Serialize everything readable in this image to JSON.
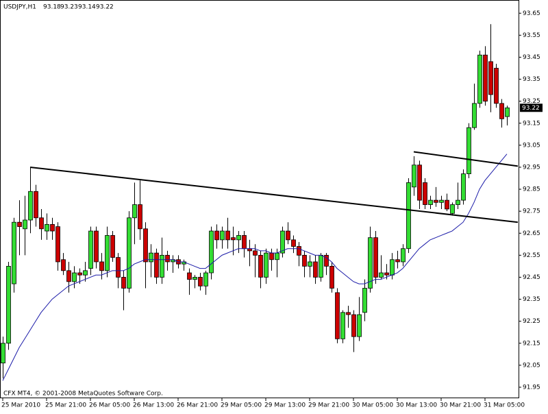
{
  "chart_data": {
    "type": "candlestick",
    "symbol": "USDJPY,H1",
    "copyright": "CFX MT4, © 2001-2008 MetaQuotes Software Corp.",
    "categories": [
      "25 Mar 2010",
      null,
      null,
      null,
      null,
      null,
      null,
      null,
      "25 Mar 21:00",
      null,
      null,
      null,
      null,
      null,
      null,
      null,
      "26 Mar 05:00",
      null,
      null,
      null,
      null,
      null,
      null,
      null,
      "26 Mar 13:00",
      null,
      null,
      null,
      null,
      null,
      null,
      null,
      "26 Mar 21:00",
      null,
      null,
      null,
      null,
      null,
      null,
      null,
      "29 Mar 05:00",
      null,
      null,
      null,
      null,
      null,
      null,
      null,
      "29 Mar 13:00",
      null,
      null,
      null,
      null,
      null,
      null,
      null,
      "29 Mar 21:00",
      null,
      null,
      null,
      null,
      null,
      null,
      null,
      "30 Mar 05:00",
      null,
      null,
      null,
      null,
      null,
      null,
      null,
      "30 Mar 13:00",
      null,
      null,
      null,
      null,
      null,
      null,
      null,
      "30 Mar 21:00",
      null,
      null,
      null,
      null,
      null,
      null,
      null,
      "31 Mar 05:00",
      null,
      null,
      null,
      null
    ],
    "open": [
      92.06,
      92.15,
      92.42,
      92.7,
      92.67,
      92.71,
      92.84,
      92.72,
      92.66,
      92.69,
      92.68,
      92.53,
      92.48,
      92.43,
      92.47,
      92.46,
      92.49,
      92.66,
      92.52,
      92.48,
      92.64,
      92.54,
      92.45,
      92.4,
      92.72,
      92.78,
      92.67,
      92.52,
      92.56,
      92.45,
      92.55,
      92.52,
      92.53,
      92.51,
      92.47,
      92.44,
      92.45,
      92.41,
      92.47,
      92.66,
      92.62,
      92.66,
      92.63,
      92.62,
      92.64,
      92.58,
      92.57,
      92.55,
      92.45,
      92.56,
      92.53,
      92.56,
      92.66,
      92.62,
      92.59,
      92.55,
      92.5,
      92.52,
      92.45,
      92.55,
      92.5,
      92.38,
      92.17,
      92.29,
      92.28,
      92.18,
      92.29,
      92.4,
      92.63,
      92.45,
      92.47,
      92.46,
      92.53,
      92.52,
      92.58,
      92.86,
      92.96,
      92.88,
      92.78,
      92.8,
      92.79,
      92.8,
      92.74,
      92.78,
      92.8,
      92.92,
      93.13,
      93.24,
      93.46,
      93.43,
      93.4,
      93.24,
      93.18
    ],
    "high": [
      92.18,
      92.52,
      92.72,
      92.8,
      92.82,
      92.95,
      92.87,
      92.76,
      92.74,
      92.72,
      92.7,
      92.56,
      92.52,
      92.5,
      92.49,
      92.52,
      92.68,
      92.68,
      92.56,
      92.68,
      92.66,
      92.56,
      92.48,
      92.75,
      92.88,
      92.89,
      92.7,
      92.6,
      92.58,
      92.63,
      92.57,
      92.55,
      92.55,
      92.53,
      92.49,
      92.46,
      92.47,
      92.48,
      92.68,
      92.69,
      92.68,
      92.72,
      92.68,
      92.66,
      92.66,
      92.62,
      92.6,
      92.57,
      92.58,
      92.58,
      92.58,
      92.68,
      92.7,
      92.64,
      92.61,
      92.57,
      92.55,
      92.55,
      92.56,
      92.56,
      92.52,
      92.4,
      92.3,
      92.32,
      92.3,
      92.36,
      92.44,
      92.68,
      92.66,
      92.55,
      92.51,
      92.56,
      92.57,
      92.6,
      92.9,
      93.0,
      92.98,
      92.9,
      92.82,
      92.86,
      92.82,
      92.83,
      92.79,
      92.88,
      92.94,
      93.15,
      93.33,
      93.48,
      93.5,
      93.6,
      93.42,
      93.26,
      93.23
    ],
    "low": [
      91.99,
      92.12,
      92.38,
      92.55,
      92.55,
      92.65,
      92.68,
      92.62,
      92.62,
      92.62,
      92.48,
      92.46,
      92.38,
      92.4,
      92.42,
      92.43,
      92.46,
      92.49,
      92.44,
      92.45,
      92.52,
      92.4,
      92.3,
      92.38,
      92.6,
      92.62,
      92.4,
      92.45,
      92.42,
      92.42,
      92.48,
      92.47,
      92.49,
      92.48,
      92.37,
      92.4,
      92.39,
      92.37,
      92.44,
      92.58,
      92.58,
      92.58,
      92.55,
      92.56,
      92.54,
      92.5,
      92.45,
      92.4,
      92.42,
      92.48,
      92.45,
      92.54,
      92.6,
      92.56,
      92.5,
      92.45,
      92.45,
      92.42,
      92.43,
      92.46,
      92.38,
      92.15,
      92.15,
      92.22,
      92.11,
      92.16,
      92.25,
      92.38,
      92.42,
      92.44,
      92.44,
      92.44,
      92.49,
      92.5,
      92.56,
      92.82,
      92.76,
      92.76,
      92.76,
      92.77,
      92.76,
      92.75,
      92.73,
      92.76,
      92.78,
      92.9,
      93.12,
      93.22,
      93.23,
      93.2,
      93.22,
      93.13,
      93.14
    ],
    "close": [
      92.15,
      92.5,
      92.7,
      92.68,
      92.71,
      92.84,
      92.72,
      92.67,
      92.69,
      92.66,
      92.52,
      92.48,
      92.43,
      92.47,
      92.46,
      92.48,
      92.66,
      92.52,
      92.48,
      92.64,
      92.54,
      92.45,
      92.4,
      92.72,
      92.78,
      92.67,
      92.52,
      92.56,
      92.45,
      92.55,
      92.52,
      92.53,
      92.51,
      92.52,
      92.44,
      92.45,
      92.41,
      92.47,
      92.66,
      92.62,
      92.66,
      92.62,
      92.62,
      92.64,
      92.58,
      92.57,
      92.55,
      92.45,
      92.56,
      92.53,
      92.56,
      92.66,
      92.62,
      92.59,
      92.55,
      92.5,
      92.52,
      92.45,
      92.55,
      92.5,
      92.4,
      92.17,
      92.29,
      92.28,
      92.18,
      92.28,
      92.4,
      92.63,
      92.45,
      92.47,
      92.46,
      92.53,
      92.52,
      92.58,
      92.88,
      92.96,
      92.8,
      92.78,
      92.8,
      92.79,
      92.8,
      92.76,
      92.78,
      92.8,
      92.92,
      93.13,
      93.24,
      93.46,
      93.25,
      93.28,
      93.24,
      93.17,
      93.22
    ],
    "ma": [
      91.98,
      92.03,
      92.08,
      92.13,
      92.17,
      92.21,
      92.25,
      92.29,
      92.32,
      92.35,
      92.37,
      92.39,
      92.41,
      92.42,
      92.43,
      92.44,
      92.45,
      92.46,
      92.46,
      92.47,
      92.48,
      92.48,
      92.48,
      92.49,
      92.51,
      92.52,
      92.53,
      92.53,
      92.53,
      92.53,
      92.53,
      92.53,
      92.52,
      92.52,
      92.51,
      92.5,
      92.49,
      92.49,
      92.51,
      92.53,
      92.55,
      92.56,
      92.57,
      92.58,
      92.58,
      92.58,
      92.58,
      92.57,
      92.57,
      92.56,
      92.56,
      92.57,
      92.58,
      92.58,
      92.58,
      92.57,
      92.56,
      92.55,
      92.55,
      92.54,
      92.52,
      92.49,
      92.47,
      92.45,
      92.43,
      92.42,
      92.42,
      92.43,
      92.44,
      92.44,
      92.45,
      92.46,
      92.47,
      92.49,
      92.52,
      92.55,
      92.58,
      92.6,
      92.62,
      92.63,
      92.64,
      92.65,
      92.66,
      92.68,
      92.7,
      92.74,
      92.79,
      92.85,
      92.89,
      92.92,
      92.95,
      92.98,
      93.01
    ],
    "trendlines": [
      {
        "x": [
          5,
          94
        ],
        "y": [
          92.95,
          92.7
        ]
      },
      {
        "x": [
          75,
          94
        ],
        "y": [
          93.02,
          92.955
        ]
      }
    ],
    "up_color": "#33dd33",
    "down_color": "#cc0000",
    "ma_color": "#1a1aa8",
    "ylim": [
      91.9,
      93.71
    ],
    "yticks": [
      91.95,
      92.05,
      92.15,
      92.25,
      92.35,
      92.45,
      92.55,
      92.65,
      92.75,
      92.85,
      92.95,
      93.05,
      93.15,
      93.25,
      93.35,
      93.45,
      93.55,
      93.65
    ]
  }
}
